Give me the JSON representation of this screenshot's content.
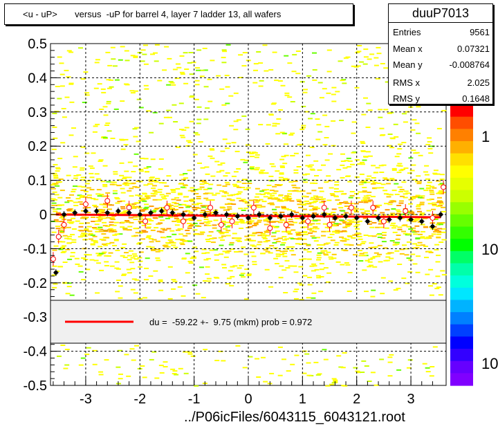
{
  "title": "<u - uP>       versus  -uP for barrel 4, layer 7 ladder 13, all wafers",
  "stats": {
    "name": "duuP7013",
    "rows": [
      {
        "label": "Entries",
        "value": "9561"
      },
      {
        "label": "Mean x",
        "value": "0.07321"
      },
      {
        "label": "Mean y",
        "value": "-0.008764"
      },
      {
        "label": "RMS x",
        "value": "2.025"
      },
      {
        "label": "RMS y",
        "value": "0.1648"
      }
    ]
  },
  "legend_text": "du =  -59.22 +-  9.75 (mkm) prob = 0.972",
  "footer": "../P06icFiles/6043115_6043121.root",
  "colorbar_labels": [
    "1",
    "10",
    "10"
  ],
  "chart_data": {
    "type": "heatmap",
    "xlim": [
      -3.65,
      3.65
    ],
    "ylim": [
      -0.5,
      0.5
    ],
    "x_ticks": [
      "-3",
      "-2",
      "-1",
      "0",
      "1",
      "2",
      "3"
    ],
    "y_ticks": [
      "0.5",
      "0.4",
      "0.3",
      "0.2",
      "0.1",
      "0",
      "-0.1",
      "-0.2",
      "-0.3",
      "-0.4",
      "-0.5"
    ],
    "grid": true,
    "fit_line": {
      "color": "#ff0000",
      "points": [
        [
          -3.55,
          0.0
        ],
        [
          3.55,
          -0.008
        ]
      ]
    },
    "profile_black": [
      {
        "x": -3.55,
        "y": -0.17
      },
      {
        "x": -3.4,
        "y": 0.0
      },
      {
        "x": -3.2,
        "y": 0.005
      },
      {
        "x": -3.0,
        "y": 0.01
      },
      {
        "x": -2.8,
        "y": 0.01
      },
      {
        "x": -2.6,
        "y": 0.005
      },
      {
        "x": -2.4,
        "y": 0.01
      },
      {
        "x": -2.2,
        "y": 0.005
      },
      {
        "x": -2.0,
        "y": 0.0
      },
      {
        "x": -1.8,
        "y": 0.005
      },
      {
        "x": -1.6,
        "y": 0.01
      },
      {
        "x": -1.4,
        "y": 0.005
      },
      {
        "x": -1.2,
        "y": 0.0
      },
      {
        "x": -1.0,
        "y": -0.01
      },
      {
        "x": -0.8,
        "y": 0.0
      },
      {
        "x": -0.6,
        "y": 0.005
      },
      {
        "x": -0.4,
        "y": 0.0
      },
      {
        "x": -0.2,
        "y": -0.005
      },
      {
        "x": 0.0,
        "y": -0.01
      },
      {
        "x": 0.2,
        "y": 0.0
      },
      {
        "x": 0.4,
        "y": -0.01
      },
      {
        "x": 0.6,
        "y": -0.005
      },
      {
        "x": 0.8,
        "y": 0.0
      },
      {
        "x": 1.0,
        "y": -0.01
      },
      {
        "x": 1.2,
        "y": -0.005
      },
      {
        "x": 1.4,
        "y": 0.0
      },
      {
        "x": 1.6,
        "y": -0.01
      },
      {
        "x": 1.8,
        "y": -0.005
      },
      {
        "x": 2.0,
        "y": -0.01
      },
      {
        "x": 2.2,
        "y": -0.02
      },
      {
        "x": 2.4,
        "y": -0.01
      },
      {
        "x": 2.6,
        "y": -0.015
      },
      {
        "x": 2.8,
        "y": -0.01
      },
      {
        "x": 3.0,
        "y": -0.015
      },
      {
        "x": 3.2,
        "y": -0.02
      },
      {
        "x": 3.4,
        "y": -0.035
      },
      {
        "x": 3.55,
        "y": 0.0
      }
    ],
    "profile_red": [
      {
        "x": -3.6,
        "y": -0.13
      },
      {
        "x": -3.5,
        "y": -0.065
      },
      {
        "x": -3.4,
        "y": -0.03
      },
      {
        "x": -3.0,
        "y": 0.03
      },
      {
        "x": -2.6,
        "y": 0.04
      },
      {
        "x": -2.2,
        "y": 0.02
      },
      {
        "x": -1.9,
        "y": -0.02
      },
      {
        "x": -1.5,
        "y": 0.02
      },
      {
        "x": -1.2,
        "y": -0.02
      },
      {
        "x": -0.7,
        "y": 0.02
      },
      {
        "x": -0.5,
        "y": -0.03
      },
      {
        "x": -0.3,
        "y": -0.02
      },
      {
        "x": 0.1,
        "y": 0.02
      },
      {
        "x": 0.4,
        "y": -0.04
      },
      {
        "x": 0.7,
        "y": -0.03
      },
      {
        "x": 1.1,
        "y": -0.02
      },
      {
        "x": 1.4,
        "y": 0.02
      },
      {
        "x": 1.5,
        "y": -0.03
      },
      {
        "x": 1.9,
        "y": 0.02
      },
      {
        "x": 2.3,
        "y": 0.02
      },
      {
        "x": 2.5,
        "y": -0.02
      },
      {
        "x": 2.9,
        "y": 0.01
      },
      {
        "x": 3.4,
        "y": -0.01
      },
      {
        "x": 3.6,
        "y": 0.08
      }
    ]
  }
}
